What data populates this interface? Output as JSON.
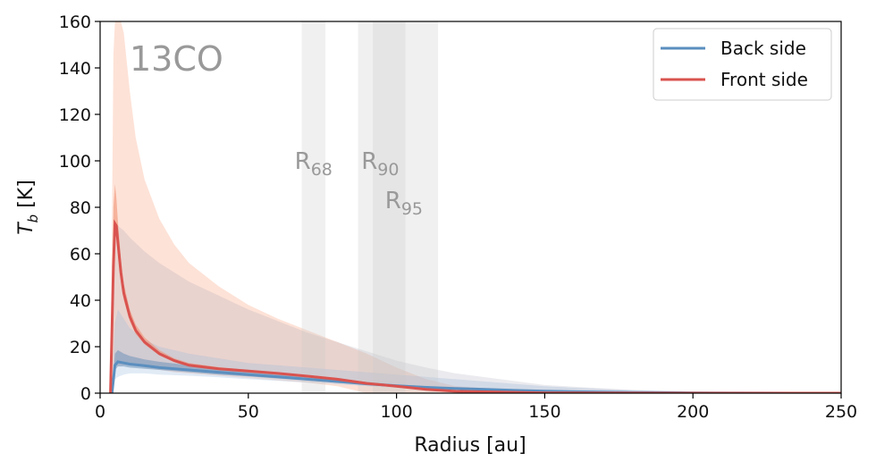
{
  "chart_data": {
    "type": "line",
    "title": "",
    "annotation": "13CO",
    "xlabel": "Radius [au]",
    "ylabel_main": "T",
    "ylabel_sub": "b",
    "ylabel_unit": " [K]",
    "xlim": [
      0,
      250
    ],
    "ylim": [
      0,
      160
    ],
    "xticks": [
      0,
      50,
      100,
      150,
      200,
      250
    ],
    "yticks": [
      0,
      20,
      40,
      60,
      80,
      100,
      120,
      140,
      160
    ],
    "grid": false,
    "legend_position": "top-right",
    "radius_markers": [
      {
        "label": "R",
        "sub": "68",
        "x": 72,
        "band": [
          68,
          76
        ],
        "label_y": 100
      },
      {
        "label": "R",
        "sub": "90",
        "x": 94.5,
        "band": [
          87,
          103
        ],
        "label_y": 100
      },
      {
        "label": "R",
        "sub": "95",
        "x": 102.5,
        "band": [
          92,
          114
        ],
        "label_y": 83
      }
    ],
    "series": [
      {
        "name": "Back side",
        "color": "#5b8fbf",
        "x": [
          4,
          5,
          6,
          8,
          10,
          15,
          20,
          30,
          40,
          50,
          60,
          70,
          80,
          90,
          100,
          110,
          120,
          130,
          140,
          150,
          160,
          180,
          200,
          220,
          250
        ],
        "y": [
          0,
          12,
          13.5,
          13,
          12.5,
          11.8,
          11,
          10,
          9,
          8,
          7,
          6,
          5,
          4,
          3.2,
          2.5,
          2,
          1.6,
          1.2,
          0.9,
          0.6,
          0.3,
          0.1,
          0.05,
          0
        ],
        "band_narrow_low": [
          0,
          10,
          11.5,
          11.5,
          11,
          10.5,
          10,
          9,
          8,
          7.2,
          6.3,
          5.4,
          4.5,
          3.6,
          2.8,
          2.2,
          1.7,
          1.3,
          1,
          0.7,
          0.5,
          0.2,
          0.1,
          0,
          0
        ],
        "band_narrow_high": [
          0,
          17,
          18.5,
          17,
          16,
          14.5,
          13.5,
          12,
          10.5,
          9.2,
          8,
          7,
          6,
          4.8,
          3.8,
          3,
          2.4,
          1.9,
          1.4,
          1.1,
          0.8,
          0.4,
          0.2,
          0.1,
          0
        ],
        "band_wide_low": [
          0,
          6,
          7,
          8,
          8.5,
          8.5,
          8,
          7.5,
          6.8,
          6,
          5.3,
          4.5,
          3.8,
          3,
          2.3,
          1.7,
          1.3,
          1,
          0.7,
          0.5,
          0.3,
          0.1,
          0.05,
          0,
          0
        ],
        "band_wide_high": [
          0,
          30,
          36,
          32,
          28,
          23,
          20,
          17,
          15,
          13,
          12,
          11,
          10,
          9,
          8,
          7,
          6,
          5,
          4,
          3,
          2.3,
          1.3,
          0.7,
          0.3,
          0
        ]
      },
      {
        "name": "Front side",
        "color": "#d9534f",
        "x": [
          3.5,
          4.5,
          5,
          5.5,
          6,
          7,
          8,
          10,
          12,
          15,
          20,
          25,
          30,
          40,
          50,
          60,
          70,
          80,
          90,
          95,
          100,
          110,
          120,
          150,
          200,
          250
        ],
        "y": [
          0,
          55,
          73,
          72,
          65,
          52,
          43,
          33,
          27,
          22,
          17,
          14,
          12,
          10.5,
          9.5,
          8.5,
          7.3,
          6,
          4.2,
          3.6,
          3,
          1.6,
          0.8,
          0.1,
          0,
          0
        ],
        "band_narrow_low": [
          0,
          50,
          68,
          67,
          60,
          48,
          40,
          31,
          25.5,
          21,
          16.2,
          13.4,
          11.5,
          10,
          9,
          8,
          6.8,
          5.5,
          3.8,
          3.2,
          2.6,
          1.3,
          0.6,
          0.1,
          0,
          0
        ],
        "band_narrow_high": [
          0,
          80,
          90,
          84,
          74,
          58,
          47,
          36,
          29.5,
          24,
          18.5,
          15,
          13,
          11.2,
          10,
          9,
          7.8,
          6.5,
          4.8,
          4,
          3.4,
          1.9,
          1,
          0.2,
          0,
          0
        ],
        "band_wide_low": [
          0,
          10,
          12,
          12,
          12,
          12,
          12,
          12,
          12,
          11,
          10,
          9,
          8.5,
          7.5,
          6.5,
          5.5,
          4.5,
          3,
          0,
          0,
          0,
          0,
          0,
          0,
          0,
          0
        ],
        "band_wide_high": [
          0,
          146,
          160,
          160,
          160,
          160,
          155,
          130,
          110,
          92,
          75,
          64,
          56,
          46,
          38,
          32,
          27,
          22,
          17,
          14,
          11,
          6,
          3,
          0.5,
          0,
          0
        ]
      }
    ],
    "bump_series": {
      "name": "",
      "color": "#9a9aa6",
      "x": [
        4,
        5,
        6,
        8,
        10,
        15,
        20,
        30,
        40,
        50,
        60,
        70,
        80,
        90,
        100,
        110,
        120,
        150,
        180,
        220,
        250
      ],
      "low": [
        0,
        12,
        13,
        13,
        12.5,
        12,
        11.5,
        10.5,
        9.5,
        8.5,
        7.5,
        6.5,
        5.5,
        4.5,
        3.5,
        2.5,
        1.8,
        0.6,
        0.2,
        0,
        0
      ],
      "high": [
        0,
        65,
        72,
        70,
        67,
        61,
        56,
        48,
        42,
        36,
        31,
        26,
        22,
        18,
        14,
        11,
        8.5,
        3.5,
        1.3,
        0.3,
        0
      ]
    }
  }
}
